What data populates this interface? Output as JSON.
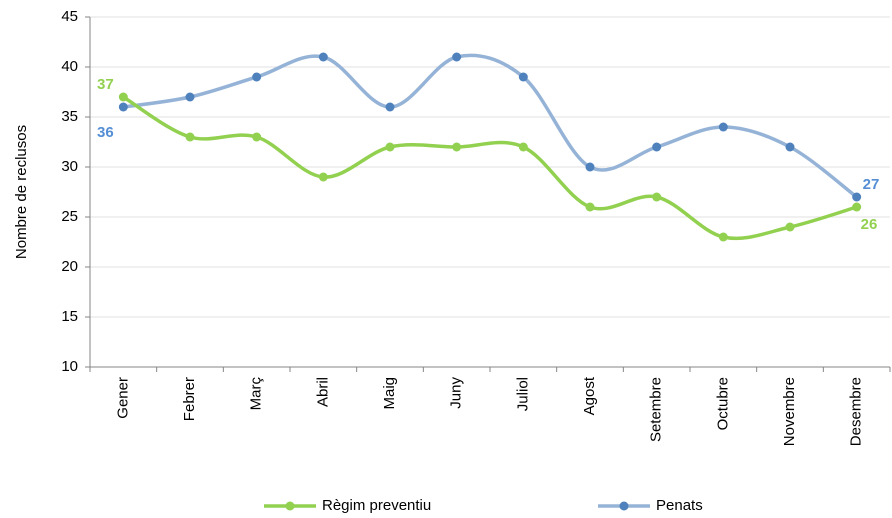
{
  "chart_data": {
    "type": "line",
    "ylabel": "Nombre de reclusos",
    "ylim": [
      10,
      45
    ],
    "yticks": [
      10,
      15,
      20,
      25,
      30,
      35,
      40,
      45
    ],
    "categories": [
      "Gener",
      "Febrer",
      "Març",
      "Abril",
      "Maig",
      "Juny",
      "Juliol",
      "Agost",
      "Setembre",
      "Octubre",
      "Novembre",
      "Desembre"
    ],
    "series": [
      {
        "name": "Règim preventiu",
        "color": "#92D050",
        "values": [
          37,
          33,
          33,
          29,
          32,
          32,
          32,
          26,
          27,
          23,
          24,
          26
        ],
        "labels": [
          {
            "index": 0,
            "text": "37"
          },
          {
            "index": 11,
            "text": "26"
          }
        ]
      },
      {
        "name": "Penats",
        "color": "#95B3D7",
        "marker_color": "#4F81BD",
        "label_color": "#558ED5",
        "values": [
          36,
          37,
          39,
          41,
          36,
          41,
          39,
          30,
          32,
          34,
          32,
          27
        ],
        "labels": [
          {
            "index": 0,
            "text": "36"
          },
          {
            "index": 11,
            "text": "27"
          }
        ]
      }
    ],
    "grid": true,
    "legend": "bottom"
  }
}
